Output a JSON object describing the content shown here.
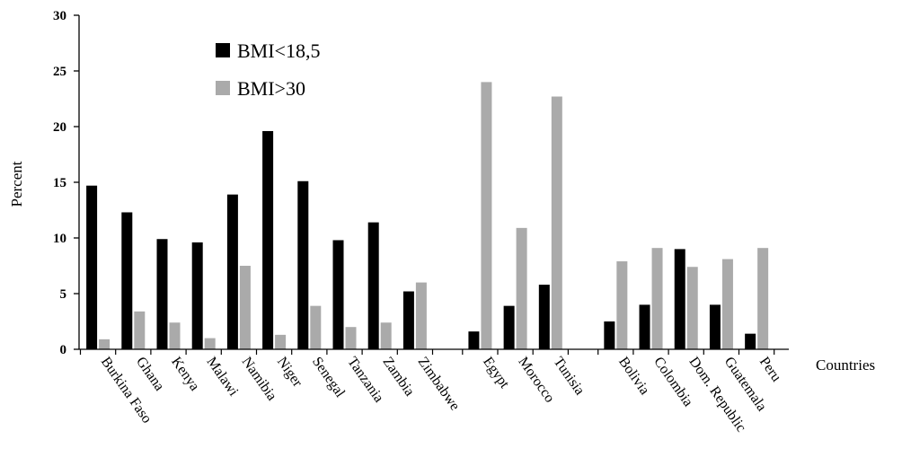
{
  "chart_data": {
    "type": "bar",
    "title": "",
    "xlabel": "Countries",
    "ylabel": "Percent",
    "ylim": [
      0,
      30
    ],
    "yticks": [
      0,
      5,
      10,
      15,
      20,
      25,
      30
    ],
    "grid": false,
    "legend_position": "top-left",
    "categories": [
      "Burkina Faso",
      "Ghana",
      "Kenya",
      "Malawi",
      "Namibia",
      "Niger",
      "Senegal",
      "Tanzania",
      "Zambia",
      "Zimbabwe",
      "Egypt",
      "Morocco",
      "Tunisia",
      "Bolivia",
      "Colombia",
      "Dom. Republic",
      "Guatemala",
      "Peru"
    ],
    "groups": [
      [
        "Burkina Faso",
        "Ghana",
        "Kenya",
        "Malawi",
        "Namibia",
        "Niger",
        "Senegal",
        "Tanzania",
        "Zambia",
        "Zimbabwe"
      ],
      [
        "Egypt",
        "Morocco",
        "Tunisia"
      ],
      [
        "Bolivia",
        "Colombia",
        "Dom. Republic",
        "Guatemala",
        "Peru"
      ]
    ],
    "series": [
      {
        "name": "BMI<18,5",
        "color": "#000000",
        "values": [
          14.7,
          12.3,
          9.9,
          9.6,
          13.9,
          19.6,
          15.1,
          9.8,
          11.4,
          5.2,
          1.6,
          3.9,
          5.8,
          2.5,
          4.0,
          9.0,
          4.0,
          1.4
        ]
      },
      {
        "name": "BMI>30",
        "color": "#aaaaaa",
        "values": [
          0.9,
          3.4,
          2.4,
          1.0,
          7.5,
          1.3,
          3.9,
          2.0,
          2.4,
          6.0,
          24.0,
          10.9,
          22.7,
          7.9,
          9.1,
          7.4,
          8.1,
          9.1
        ]
      }
    ]
  }
}
